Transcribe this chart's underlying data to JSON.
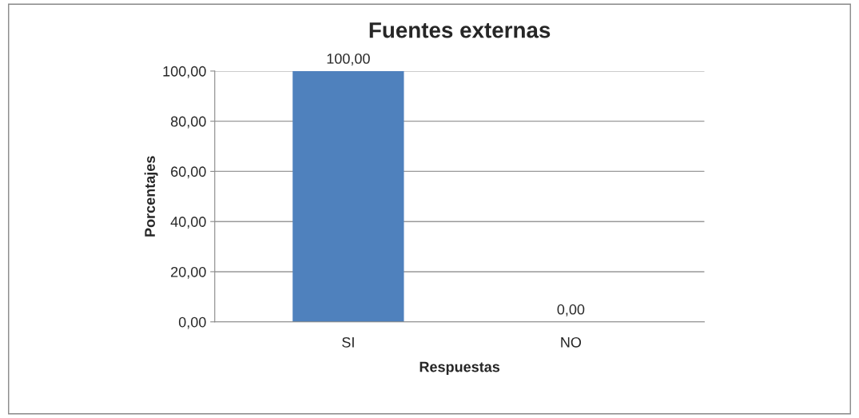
{
  "chart_data": {
    "type": "bar",
    "title": "Fuentes externas",
    "xlabel": "Respuestas",
    "ylabel": "Porcentajes",
    "categories": [
      "SI",
      "NO"
    ],
    "values": [
      100,
      0
    ],
    "colors": [
      "#4f81bd",
      "#953735"
    ],
    "value_labels": [
      "100,00",
      "0,00"
    ],
    "ylim": [
      0,
      100
    ],
    "yticks": [
      {
        "value": 0,
        "label": "0,00"
      },
      {
        "value": 20,
        "label": "20,00"
      },
      {
        "value": 40,
        "label": "40,00"
      },
      {
        "value": 60,
        "label": "60,00"
      },
      {
        "value": 80,
        "label": "80,00"
      },
      {
        "value": 100,
        "label": "100,00"
      }
    ],
    "grid": "y"
  }
}
